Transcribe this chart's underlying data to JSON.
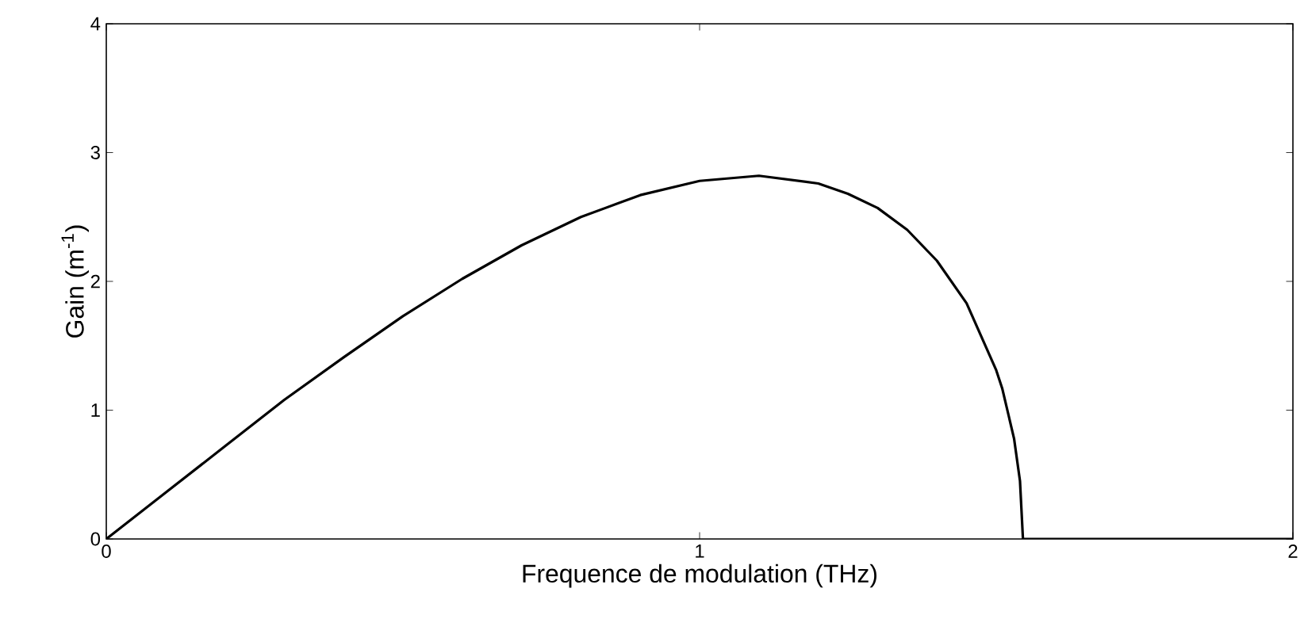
{
  "chart_data": {
    "type": "line",
    "xlabel": "Frequence de modulation (THz)",
    "ylabel": "Gain (m$^{-1}$)",
    "x": [
      0,
      0.1,
      0.2,
      0.3,
      0.4,
      0.5,
      0.6,
      0.7,
      0.8,
      0.9,
      1.0,
      1.1,
      1.2,
      1.25,
      1.3,
      1.35,
      1.4,
      1.45,
      1.5,
      1.51,
      1.53,
      1.54,
      1.545,
      2
    ],
    "series": [
      {
        "color": "#000000",
        "values": [
          0,
          0.36,
          0.72,
          1.08,
          1.41,
          1.73,
          2.02,
          2.28,
          2.5,
          2.67,
          2.78,
          2.82,
          2.76,
          2.68,
          2.57,
          2.4,
          2.16,
          1.83,
          1.31,
          1.17,
          0.78,
          0.45,
          0,
          0
        ]
      }
    ],
    "xlim": [
      0,
      2
    ],
    "ylim": [
      0,
      4
    ],
    "xticks": [
      0,
      1,
      2
    ],
    "yticks": [
      0,
      1,
      2,
      3,
      4
    ],
    "marker": "none",
    "line_style": "solid"
  }
}
